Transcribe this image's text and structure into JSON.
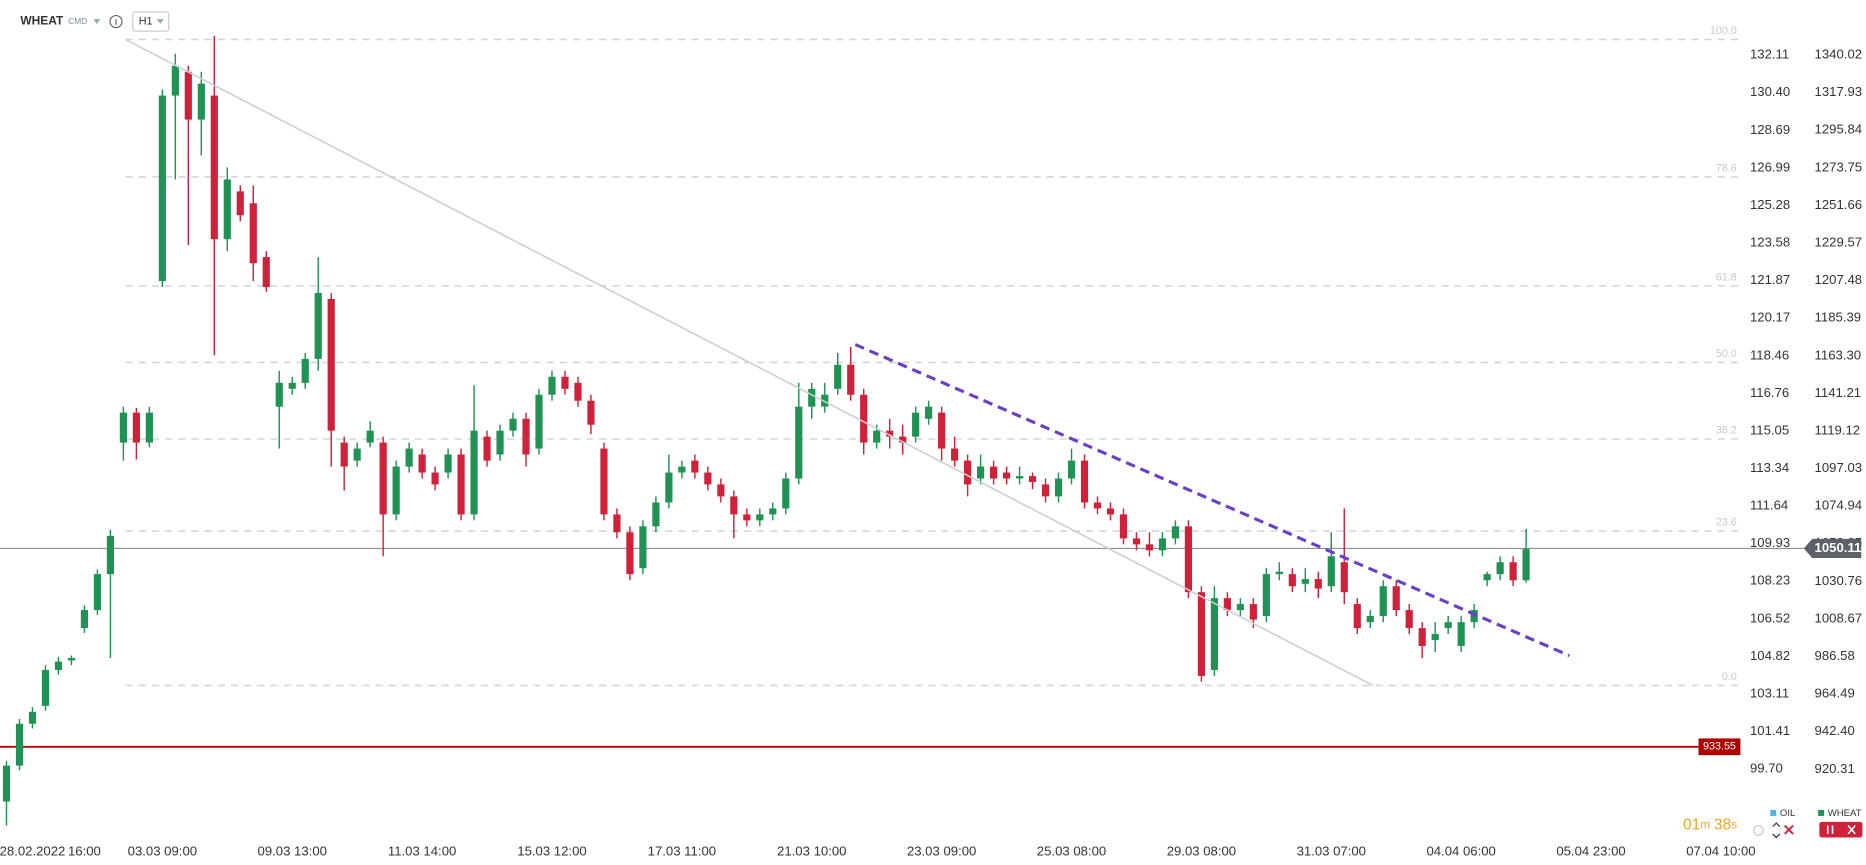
{
  "header": {
    "symbol": "WHEAT",
    "market": "CMD",
    "interval": "H1"
  },
  "chart_data": {
    "type": "candlestick",
    "up_color": "#1f9254",
    "down_color": "#d0213a",
    "categories": [
      null,
      null,
      "28.02.2022",
      null,
      null,
      null,
      "16:00",
      null,
      null,
      null,
      null,
      null,
      "03.03 09:00",
      null,
      null,
      null,
      null,
      null,
      null,
      null,
      null,
      null,
      "09.03 13:00",
      null,
      null,
      null,
      null,
      null,
      null,
      null,
      null,
      null,
      "11.03 14:00",
      null,
      null,
      null,
      null,
      null,
      null,
      null,
      null,
      null,
      "15.03 12:00",
      null,
      null,
      null,
      null,
      null,
      null,
      null,
      null,
      null,
      "17.03 11:00",
      null,
      null,
      null,
      null,
      null,
      null,
      null,
      null,
      null,
      "21.03 10:00",
      null,
      null,
      null,
      null,
      null,
      null,
      null,
      null,
      null,
      "23.03 09:00",
      null,
      null,
      null,
      null,
      null,
      null,
      null,
      null,
      null,
      "25.03 08:00",
      null,
      null,
      null,
      null,
      null,
      null,
      null,
      null,
      null,
      "29.03 08:00",
      null,
      null,
      null,
      null,
      null,
      null,
      null,
      null,
      null,
      "31.03 07:00",
      null,
      null,
      null,
      null,
      null,
      null,
      null,
      null,
      null,
      "04.04 06:00",
      null,
      null,
      null,
      null,
      null,
      null,
      null,
      null,
      null,
      "05.04 23:00",
      null,
      null,
      null,
      null,
      null,
      null,
      null,
      null,
      null,
      "07.04 10:00",
      null
    ],
    "ohlc": [
      [
        901.4,
        925.3,
        887.3,
        922.5
      ],
      [
        922.5,
        949.9,
        919.7,
        947.1
      ],
      [
        947.1,
        956.9,
        944.3,
        954.1
      ],
      [
        957.6,
        981.5,
        954.8,
        978.7
      ],
      [
        978.7,
        986.4,
        975.9,
        983.6
      ],
      [
        984.3,
        987.2,
        981.5,
        985.7
      ],
      [
        1003.3,
        1016.7,
        1000.5,
        1013.9
      ],
      [
        1013.9,
        1037.8,
        1011.1,
        1035.0
      ],
      [
        1035.0,
        1061.0,
        985.7,
        1057.5
      ],
      [
        1112.3,
        1133.4,
        1101.7,
        1129.9
      ],
      [
        1129.9,
        1132.7,
        1102.4,
        1112.3
      ],
      [
        1112.3,
        1133.4,
        1109.5,
        1129.9
      ],
      [
        1207.2,
        1319.7,
        1203.7,
        1316.2
      ],
      [
        1316.2,
        1340.8,
        1266.9,
        1333.7
      ],
      [
        1330.2,
        1333.7,
        1228.3,
        1302.1
      ],
      [
        1302.1,
        1330.2,
        1281.0,
        1323.2
      ],
      [
        1316.2,
        1351.3,
        1163.6,
        1231.8
      ],
      [
        1231.8,
        1274.0,
        1224.8,
        1266.9
      ],
      [
        1259.9,
        1263.4,
        1242.3,
        1245.9
      ],
      [
        1252.9,
        1263.4,
        1207.2,
        1217.7
      ],
      [
        1221.3,
        1224.8,
        1200.9,
        1203.7
      ],
      [
        1133.4,
        1154.5,
        1108.8,
        1147.4
      ],
      [
        1143.9,
        1151.0,
        1140.4,
        1147.4
      ],
      [
        1147.4,
        1165.0,
        1143.9,
        1161.5
      ],
      [
        1161.5,
        1221.3,
        1154.5,
        1200.2
      ],
      [
        1196.7,
        1200.2,
        1098.2,
        1119.3
      ],
      [
        1112.3,
        1115.8,
        1084.2,
        1098.2
      ],
      [
        1101.7,
        1112.3,
        1098.2,
        1108.8
      ],
      [
        1112.3,
        1124.9,
        1109.5,
        1119.3
      ],
      [
        1112.3,
        1115.8,
        1045.5,
        1070.1
      ],
      [
        1070.1,
        1101.7,
        1066.6,
        1098.2
      ],
      [
        1098.2,
        1112.3,
        1094.7,
        1108.8
      ],
      [
        1105.3,
        1108.8,
        1091.2,
        1094.7
      ],
      [
        1094.7,
        1098.2,
        1084.2,
        1087.7
      ],
      [
        1094.7,
        1108.8,
        1091.2,
        1105.3
      ],
      [
        1105.3,
        1108.8,
        1066.6,
        1070.1
      ],
      [
        1070.1,
        1146.0,
        1066.6,
        1119.3
      ],
      [
        1115.8,
        1119.3,
        1098.2,
        1101.7
      ],
      [
        1105.3,
        1122.8,
        1101.7,
        1119.3
      ],
      [
        1119.3,
        1129.9,
        1115.8,
        1126.3
      ],
      [
        1126.3,
        1129.9,
        1098.2,
        1105.3
      ],
      [
        1108.8,
        1143.9,
        1105.3,
        1140.4
      ],
      [
        1140.4,
        1154.5,
        1136.9,
        1151.0
      ],
      [
        1151.0,
        1154.5,
        1140.4,
        1143.9
      ],
      [
        1147.4,
        1151.0,
        1133.4,
        1136.9
      ],
      [
        1136.9,
        1140.4,
        1117.2,
        1122.8
      ],
      [
        1108.8,
        1112.3,
        1066.6,
        1070.1
      ],
      [
        1070.1,
        1073.6,
        1056.0,
        1059.6
      ],
      [
        1059.6,
        1063.1,
        1031.4,
        1035.0
      ],
      [
        1038.5,
        1066.6,
        1035.0,
        1063.1
      ],
      [
        1063.1,
        1080.7,
        1059.6,
        1077.1
      ],
      [
        1077.1,
        1105.3,
        1073.6,
        1094.7
      ],
      [
        1094.7,
        1101.7,
        1091.2,
        1098.2
      ],
      [
        1101.7,
        1105.3,
        1091.2,
        1094.7
      ],
      [
        1094.7,
        1098.2,
        1084.2,
        1087.7
      ],
      [
        1087.7,
        1091.2,
        1077.1,
        1080.7
      ],
      [
        1080.7,
        1084.2,
        1056.0,
        1070.1
      ],
      [
        1070.1,
        1073.6,
        1063.1,
        1066.6
      ],
      [
        1066.6,
        1073.6,
        1063.1,
        1070.1
      ],
      [
        1070.1,
        1077.1,
        1066.6,
        1073.6
      ],
      [
        1073.6,
        1094.7,
        1070.1,
        1091.2
      ],
      [
        1091.2,
        1147.4,
        1087.7,
        1133.4
      ],
      [
        1133.4,
        1147.4,
        1126.3,
        1143.9
      ],
      [
        1133.4,
        1147.4,
        1129.9,
        1140.4
      ],
      [
        1143.9,
        1165.0,
        1140.4,
        1158.0
      ],
      [
        1158.0,
        1168.5,
        1136.9,
        1140.4
      ],
      [
        1140.4,
        1143.9,
        1105.3,
        1112.3
      ],
      [
        1112.3,
        1122.8,
        1108.8,
        1119.3
      ],
      [
        1119.3,
        1126.3,
        1108.8,
        1115.8
      ],
      [
        1115.8,
        1122.8,
        1105.3,
        1112.3
      ],
      [
        1115.8,
        1133.4,
        1112.3,
        1129.9
      ],
      [
        1126.3,
        1136.9,
        1122.8,
        1133.4
      ],
      [
        1129.9,
        1133.4,
        1101.7,
        1108.8
      ],
      [
        1108.8,
        1115.8,
        1098.2,
        1101.7
      ],
      [
        1101.7,
        1105.3,
        1080.7,
        1087.7
      ],
      [
        1091.2,
        1105.3,
        1087.7,
        1098.2
      ],
      [
        1098.2,
        1101.7,
        1087.7,
        1091.2
      ],
      [
        1094.7,
        1098.2,
        1087.7,
        1091.2
      ],
      [
        1091.2,
        1098.2,
        1087.7,
        1092.6
      ],
      [
        1092.6,
        1094.7,
        1084.9,
        1089.1
      ],
      [
        1087.7,
        1091.2,
        1077.1,
        1080.7
      ],
      [
        1080.7,
        1094.7,
        1077.1,
        1091.2
      ],
      [
        1091.2,
        1108.8,
        1087.7,
        1101.7
      ],
      [
        1101.7,
        1105.3,
        1073.6,
        1077.1
      ],
      [
        1077.1,
        1080.7,
        1070.1,
        1073.6
      ],
      [
        1073.6,
        1077.1,
        1066.6,
        1070.1
      ],
      [
        1070.1,
        1073.6,
        1052.5,
        1056.0
      ],
      [
        1056.0,
        1059.6,
        1049.0,
        1052.5
      ],
      [
        1052.5,
        1059.6,
        1045.5,
        1049.0
      ],
      [
        1049.0,
        1059.6,
        1045.5,
        1056.0
      ],
      [
        1056.0,
        1066.6,
        1052.5,
        1063.1
      ],
      [
        1063.1,
        1066.6,
        1020.9,
        1024.4
      ],
      [
        1024.4,
        1027.9,
        971.7,
        975.2
      ],
      [
        978.7,
        1027.9,
        975.2,
        1020.9
      ],
      [
        1020.9,
        1024.4,
        1010.4,
        1013.9
      ],
      [
        1013.9,
        1020.9,
        1010.4,
        1017.4
      ],
      [
        1017.4,
        1020.9,
        1003.3,
        1008.3
      ],
      [
        1010.4,
        1038.5,
        1006.8,
        1035.0
      ],
      [
        1035.0,
        1042.0,
        1031.4,
        1036.4
      ],
      [
        1035.0,
        1038.5,
        1024.4,
        1027.9
      ],
      [
        1029.3,
        1038.5,
        1024.4,
        1032.1
      ],
      [
        1032.1,
        1036.4,
        1020.9,
        1026.5
      ],
      [
        1027.9,
        1059.6,
        1024.4,
        1045.5
      ],
      [
        1042.0,
        1073.6,
        1017.4,
        1024.4
      ],
      [
        1017.4,
        1020.9,
        999.8,
        1003.3
      ],
      [
        1006.8,
        1013.9,
        1003.3,
        1010.4
      ],
      [
        1010.4,
        1031.4,
        1006.8,
        1027.9
      ],
      [
        1027.9,
        1031.4,
        1010.4,
        1013.9
      ],
      [
        1013.9,
        1017.4,
        999.8,
        1003.3
      ],
      [
        1003.3,
        1006.8,
        985.7,
        992.8
      ],
      [
        996.3,
        1006.8,
        989.3,
        999.8
      ],
      [
        1003.3,
        1010.4,
        999.8,
        1006.8
      ],
      [
        992.8,
        1010.4,
        989.3,
        1006.8
      ],
      [
        1006.8,
        1017.4,
        1003.3,
        1013.9
      ],
      [
        1031.4,
        1036.4,
        1027.9,
        1035.0
      ],
      [
        1035.0,
        1045.5,
        1031.4,
        1042.0
      ],
      [
        1042.0,
        1045.5,
        1027.9,
        1031.4
      ],
      [
        1031.4,
        1061.7,
        1030.0,
        1049.7
      ],
      null,
      null,
      null,
      null,
      null,
      null,
      null,
      null,
      null,
      null,
      null,
      null,
      null,
      null,
      null,
      null
    ],
    "ylim": [
      880.26,
      1372.36
    ],
    "yticks": [
      1340.02,
      1317.93,
      1295.84,
      1273.75,
      1251.66,
      1229.57,
      1207.48,
      1185.39,
      {
        "value": 1163.3,
        "label": "1163.30"
      },
      1141.21,
      1119.12,
      1097.03,
      1074.94,
      1052.85,
      1030.76,
      1008.67,
      986.58,
      964.49,
      {
        "value": 942.4,
        "label": "942.40"
      },
      920.31
    ],
    "y2lim": [
      96.6,
      134.61
    ],
    "y2ticks": [
      132.11,
      {
        "value": 130.4,
        "label": "130.40"
      },
      128.69,
      126.99,
      125.28,
      123.58,
      121.87,
      120.17,
      118.46,
      116.76,
      115.05,
      113.34,
      111.64,
      109.93,
      108.23,
      106.52,
      104.82,
      103.11,
      101.41,
      {
        "value": 99.7,
        "label": "99.70"
      }
    ],
    "fib_levels": [
      {
        "label": "100.0",
        "price": 1349.2
      },
      {
        "label": "78.6",
        "price": 1268.4
      },
      {
        "label": "61.8",
        "price": 1204.4
      },
      {
        "label": "50.0",
        "price": 1159.4
      },
      {
        "label": "38.2",
        "price": 1114.4
      },
      {
        "label": "23.6",
        "price": 1060.3
      },
      {
        "label": "0.0",
        "price": 969.6
      }
    ],
    "last_price": 1050.11,
    "support_price": 933.55,
    "legend": [
      {
        "name": "OIL",
        "color": "#4fb3e8"
      },
      {
        "name": "WHEAT",
        "color": "#1f9254"
      }
    ],
    "countdown": [
      "01",
      "m",
      "38",
      "s"
    ]
  }
}
